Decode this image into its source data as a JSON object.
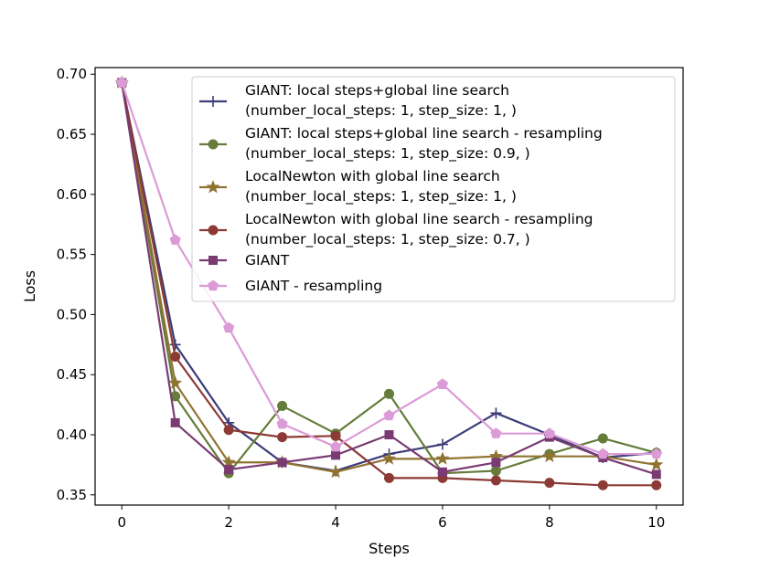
{
  "chart_data": {
    "type": "line",
    "title": "",
    "xlabel": "Steps",
    "ylabel": "Loss",
    "xlim": [
      -0.5,
      10.5
    ],
    "ylim": [
      0.3415,
      0.7055
    ],
    "xticks": [
      0,
      2,
      4,
      6,
      8,
      10
    ],
    "yticks": [
      0.35,
      0.4,
      0.45,
      0.5,
      0.55,
      0.6,
      0.65,
      0.7
    ],
    "x": [
      0,
      1,
      2,
      3,
      4,
      5,
      6,
      7,
      8,
      9,
      10
    ],
    "legend_location": "top-right",
    "series": [
      {
        "name_line1": "GIANT: local steps+global line search",
        "name_line2": "(number_local_steps: 1, step_size: 1, )",
        "color": "#3b3c78",
        "marker": "plus",
        "values": [
          0.693,
          0.475,
          0.41,
          0.377,
          0.37,
          0.384,
          0.392,
          0.418,
          0.4,
          0.381,
          0.385
        ]
      },
      {
        "name_line1": "GIANT: local steps+global line search - resampling",
        "name_line2": "(number_local_steps: 1, step_size: 0.9, )",
        "color": "#657c3b",
        "marker": "circle",
        "values": [
          0.693,
          0.432,
          0.368,
          0.424,
          0.401,
          0.434,
          0.368,
          0.37,
          0.384,
          0.397,
          0.385
        ]
      },
      {
        "name_line1": "LocalNewton with global line search",
        "name_line2": "(number_local_steps: 1, step_size: 1, )",
        "color": "#8f7331",
        "marker": "star",
        "values": [
          0.693,
          0.443,
          0.377,
          0.377,
          0.369,
          0.38,
          0.38,
          0.382,
          0.382,
          0.382,
          0.375
        ]
      },
      {
        "name_line1": "LocalNewton with global line search - resampling",
        "name_line2": "(number_local_steps: 1, step_size: 0.7, )",
        "color": "#8c3a35",
        "marker": "circle",
        "values": [
          0.693,
          0.465,
          0.404,
          0.398,
          0.399,
          0.364,
          0.364,
          0.362,
          0.36,
          0.358,
          0.358
        ]
      },
      {
        "name_line1": "GIANT",
        "name_line2": "",
        "color": "#7a3b72",
        "marker": "square",
        "values": [
          0.693,
          0.41,
          0.371,
          0.377,
          0.383,
          0.4,
          0.369,
          0.377,
          0.398,
          0.381,
          0.367
        ]
      },
      {
        "name_line1": "GIANT - resampling",
        "name_line2": "",
        "color": "#dc9bd6",
        "marker": "pentagon",
        "values": [
          0.693,
          0.562,
          0.489,
          0.409,
          0.39,
          0.416,
          0.442,
          0.401,
          0.401,
          0.384,
          0.384
        ]
      }
    ]
  }
}
